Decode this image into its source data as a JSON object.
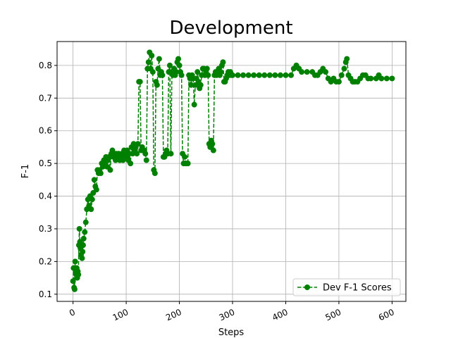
{
  "chart_data": {
    "type": "line",
    "title": "Development",
    "xlabel": "Steps",
    "ylabel": "F-1",
    "x": [
      0,
      1,
      2,
      3,
      4,
      5,
      6,
      7,
      8,
      9,
      10,
      11,
      12,
      13,
      14,
      15,
      16,
      17,
      18,
      19,
      20,
      22,
      24,
      26,
      28,
      30,
      32,
      34,
      36,
      38,
      40,
      42,
      44,
      46,
      48,
      50,
      52,
      54,
      56,
      58,
      60,
      62,
      64,
      66,
      68,
      70,
      72,
      74,
      76,
      78,
      80,
      82,
      84,
      86,
      88,
      90,
      92,
      94,
      96,
      98,
      100,
      102,
      104,
      106,
      108,
      110,
      112,
      114,
      116,
      118,
      120,
      122,
      124,
      126,
      128,
      130,
      132,
      134,
      136,
      138,
      140,
      142,
      144,
      146,
      148,
      150,
      152,
      154,
      156,
      158,
      160,
      162,
      164,
      166,
      168,
      170,
      172,
      174,
      176,
      178,
      180,
      182,
      184,
      186,
      188,
      190,
      192,
      194,
      196,
      198,
      200,
      202,
      204,
      206,
      208,
      210,
      212,
      214,
      216,
      218,
      220,
      222,
      224,
      226,
      228,
      230,
      232,
      234,
      236,
      238,
      240,
      242,
      244,
      246,
      248,
      250,
      252,
      254,
      256,
      258,
      260,
      262,
      264,
      266,
      268,
      270,
      272,
      274,
      276,
      278,
      280,
      282,
      284,
      286,
      288,
      290,
      292,
      294,
      296,
      298,
      300,
      310,
      320,
      330,
      340,
      350,
      360,
      370,
      380,
      390,
      400,
      410,
      415,
      420,
      425,
      430,
      440,
      450,
      455,
      460,
      465,
      470,
      475,
      480,
      485,
      490,
      495,
      500,
      505,
      510,
      513,
      515,
      518,
      522,
      526,
      530,
      535,
      540,
      545,
      550,
      555,
      560,
      570,
      575,
      580,
      590,
      600
    ],
    "series": [
      {
        "name": "Dev F-1 Scores",
        "color": "#008000",
        "values": [
          0.14,
          0.18,
          0.12,
          0.115,
          0.2,
          0.17,
          0.16,
          0.18,
          0.15,
          0.17,
          0.16,
          0.25,
          0.3,
          0.26,
          0.24,
          0.22,
          0.25,
          0.21,
          0.23,
          0.25,
          0.27,
          0.29,
          0.32,
          0.36,
          0.39,
          0.37,
          0.4,
          0.36,
          0.39,
          0.41,
          0.45,
          0.43,
          0.42,
          0.48,
          0.47,
          0.48,
          0.47,
          0.5,
          0.49,
          0.51,
          0.5,
          0.52,
          0.49,
          0.51,
          0.52,
          0.48,
          0.53,
          0.54,
          0.52,
          0.53,
          0.51,
          0.53,
          0.52,
          0.53,
          0.51,
          0.52,
          0.53,
          0.51,
          0.54,
          0.53,
          0.52,
          0.54,
          0.51,
          0.53,
          0.5,
          0.55,
          0.53,
          0.56,
          0.54,
          0.55,
          0.53,
          0.56,
          0.75,
          0.75,
          0.54,
          0.55,
          0.54,
          0.54,
          0.53,
          0.51,
          0.79,
          0.81,
          0.84,
          0.79,
          0.83,
          0.78,
          0.48,
          0.47,
          0.75,
          0.74,
          0.79,
          0.82,
          0.77,
          0.78,
          0.77,
          0.52,
          0.52,
          0.53,
          0.54,
          0.53,
          0.78,
          0.8,
          0.53,
          0.78,
          0.77,
          0.79,
          0.77,
          0.78,
          0.81,
          0.82,
          0.8,
          0.78,
          0.77,
          0.53,
          0.5,
          0.52,
          0.5,
          0.5,
          0.5,
          0.77,
          0.76,
          0.74,
          0.77,
          0.76,
          0.68,
          0.74,
          0.76,
          0.78,
          0.75,
          0.73,
          0.74,
          0.77,
          0.79,
          0.79,
          0.77,
          0.78,
          0.79,
          0.77,
          0.56,
          0.55,
          0.57,
          0.56,
          0.54,
          0.77,
          0.78,
          0.77,
          0.78,
          0.79,
          0.77,
          0.78,
          0.8,
          0.81,
          0.75,
          0.75,
          0.76,
          0.77,
          0.78,
          0.77,
          0.78,
          0.77,
          0.77,
          0.77,
          0.77,
          0.77,
          0.77,
          0.77,
          0.77,
          0.77,
          0.77,
          0.77,
          0.77,
          0.77,
          0.79,
          0.8,
          0.79,
          0.78,
          0.78,
          0.78,
          0.77,
          0.77,
          0.78,
          0.79,
          0.78,
          0.76,
          0.75,
          0.76,
          0.75,
          0.75,
          0.77,
          0.79,
          0.81,
          0.82,
          0.77,
          0.76,
          0.75,
          0.75,
          0.75,
          0.76,
          0.77,
          0.77,
          0.76,
          0.76,
          0.76,
          0.77,
          0.76,
          0.76,
          0.76
        ]
      }
    ],
    "xlim": [
      -30,
      626
    ],
    "ylim": [
      0.078,
      0.873
    ],
    "xticks": [
      0,
      100,
      200,
      300,
      400,
      500,
      600
    ],
    "yticks": [
      0.1,
      0.2,
      0.3,
      0.4,
      0.5,
      0.6,
      0.7,
      0.8
    ],
    "grid": true,
    "legend": "lower right"
  }
}
